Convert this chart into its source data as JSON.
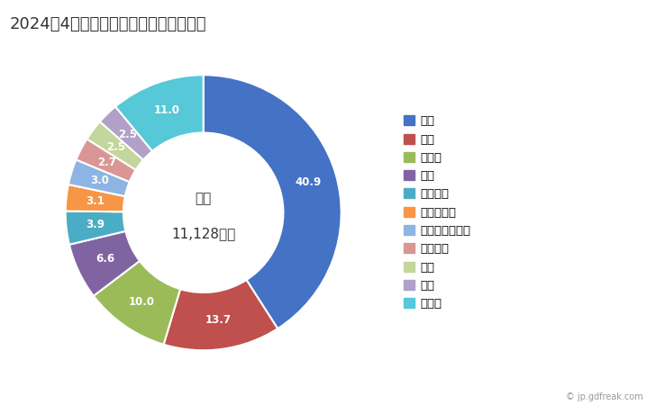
{
  "title": "2024年4月の輸出相手国のシェア（％）",
  "center_label": "総額",
  "center_value": "11,128万円",
  "labels": [
    "中国",
    "米国",
    "ドイツ",
    "台湾",
    "ベトナム",
    "フィリピン",
    "エルサルバドル",
    "オランダ",
    "韓国",
    "香港",
    "その他"
  ],
  "values": [
    40.9,
    13.7,
    10.0,
    6.6,
    3.9,
    3.1,
    3.0,
    2.7,
    2.5,
    2.5,
    11.0
  ],
  "colors": [
    "#4472C4",
    "#C0504D",
    "#9BBB59",
    "#8064A2",
    "#4BACC6",
    "#F79646",
    "#8EB4E3",
    "#D99694",
    "#C3D69B",
    "#B1A0C7",
    "#56C8D8"
  ],
  "background_color": "#FFFFFF",
  "title_fontsize": 13,
  "legend_fontsize": 9.5,
  "annotation_fontsize": 8.5
}
